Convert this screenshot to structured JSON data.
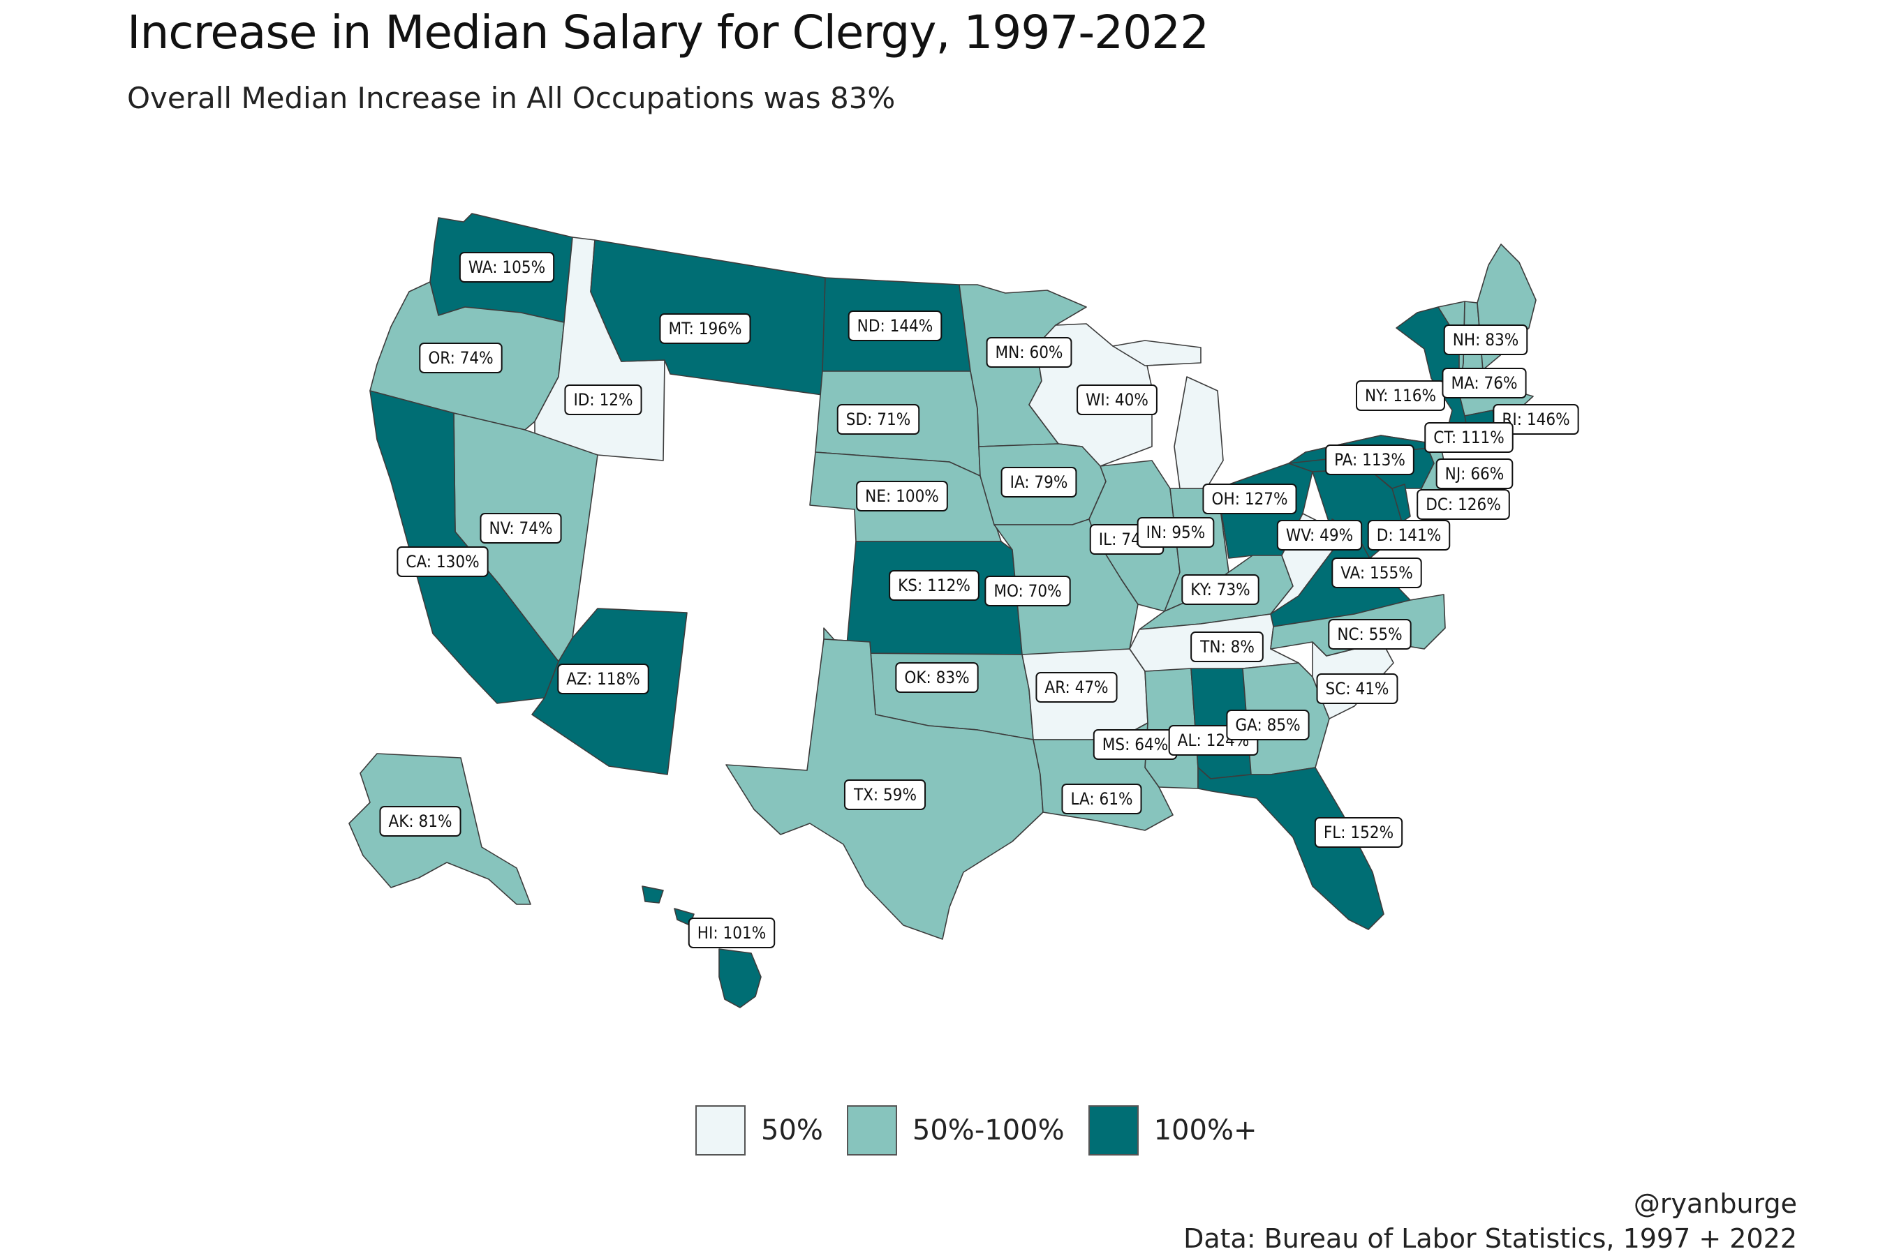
{
  "title": "Increase in Median Salary for Clergy, 1997-2022",
  "subtitle": "Overall Median Increase in All Occupations was 83%",
  "colors": {
    "low": "#eef6f8",
    "mid": "#87c4bd",
    "high": "#006e74",
    "border": "#3c3c3c"
  },
  "legend": [
    {
      "label": "50%",
      "bin": "low"
    },
    {
      "label": "50%-100%",
      "bin": "mid"
    },
    {
      "label": "100%+",
      "bin": "high"
    }
  ],
  "states": [
    {
      "abbr": "WA",
      "value": 105,
      "label": "WA: 105%",
      "bin": "high"
    },
    {
      "abbr": "OR",
      "value": 74,
      "label": "OR: 74%",
      "bin": "mid"
    },
    {
      "abbr": "ID",
      "value": 12,
      "label": "ID: 12%",
      "bin": "low"
    },
    {
      "abbr": "MT",
      "value": 196,
      "label": "MT: 196%",
      "bin": "high"
    },
    {
      "abbr": "ND",
      "value": 144,
      "label": "ND: 144%",
      "bin": "high"
    },
    {
      "abbr": "MN",
      "value": 60,
      "label": "MN: 60%",
      "bin": "mid"
    },
    {
      "abbr": "WI",
      "value": 40,
      "label": "WI: 40%",
      "bin": "low"
    },
    {
      "abbr": "SD",
      "value": 71,
      "label": "SD: 71%",
      "bin": "mid"
    },
    {
      "abbr": "NE",
      "value": 100,
      "label": "NE: 100%",
      "bin": "mid"
    },
    {
      "abbr": "IA",
      "value": 79,
      "label": "IA: 79%",
      "bin": "mid"
    },
    {
      "abbr": "NV",
      "value": 74,
      "label": "NV: 74%",
      "bin": "mid"
    },
    {
      "abbr": "CA",
      "value": 130,
      "label": "CA: 130%",
      "bin": "high"
    },
    {
      "abbr": "AZ",
      "value": 118,
      "label": "AZ: 118%",
      "bin": "high"
    },
    {
      "abbr": "KS",
      "value": 112,
      "label": "KS: 112%",
      "bin": "high"
    },
    {
      "abbr": "OK",
      "value": 83,
      "label": "OK: 83%",
      "bin": "mid"
    },
    {
      "abbr": "TX",
      "value": 59,
      "label": "TX: 59%",
      "bin": "mid"
    },
    {
      "abbr": "MO",
      "value": 70,
      "label": "MO: 70%",
      "bin": "mid"
    },
    {
      "abbr": "IL",
      "value": 74,
      "label": "IL: 74%",
      "bin": "mid"
    },
    {
      "abbr": "IN",
      "value": 95,
      "label": "IN: 95%",
      "bin": "mid"
    },
    {
      "abbr": "OH",
      "value": 127,
      "label": "OH: 127%",
      "bin": "high"
    },
    {
      "abbr": "KY",
      "value": 73,
      "label": "KY: 73%",
      "bin": "mid"
    },
    {
      "abbr": "WV",
      "value": 49,
      "label": "WV: 49%",
      "bin": "low"
    },
    {
      "abbr": "VA",
      "value": 155,
      "label": "VA: 155%",
      "bin": "high"
    },
    {
      "abbr": "TN",
      "value": 8,
      "label": "TN: 8%",
      "bin": "low"
    },
    {
      "abbr": "AR",
      "value": 47,
      "label": "AR: 47%",
      "bin": "low"
    },
    {
      "abbr": "MS",
      "value": 64,
      "label": "MS: 64%",
      "bin": "mid"
    },
    {
      "abbr": "AL",
      "value": 124,
      "label": "AL: 124%",
      "bin": "high"
    },
    {
      "abbr": "LA",
      "value": 61,
      "label": "LA: 61%",
      "bin": "mid"
    },
    {
      "abbr": "GA",
      "value": 85,
      "label": "GA: 85%",
      "bin": "mid"
    },
    {
      "abbr": "FL",
      "value": 152,
      "label": "FL: 152%",
      "bin": "high"
    },
    {
      "abbr": "SC",
      "value": 41,
      "label": "SC: 41%",
      "bin": "low"
    },
    {
      "abbr": "NC",
      "value": 55,
      "label": "NC: 55%",
      "bin": "mid"
    },
    {
      "abbr": "PA",
      "value": 113,
      "label": "PA: 113%",
      "bin": "high"
    },
    {
      "abbr": "NY",
      "value": 116,
      "label": "NY: 116%",
      "bin": "high"
    },
    {
      "abbr": "NH",
      "value": 83,
      "label": "NH: 83%",
      "bin": "mid"
    },
    {
      "abbr": "MA",
      "value": 76,
      "label": "MA: 76%",
      "bin": "mid"
    },
    {
      "abbr": "RI",
      "value": 146,
      "label": "RI: 146%",
      "bin": "high"
    },
    {
      "abbr": "CT",
      "value": 111,
      "label": "CT: 111%",
      "bin": "high"
    },
    {
      "abbr": "NJ",
      "value": 66,
      "label": "NJ: 66%",
      "bin": "mid"
    },
    {
      "abbr": "DC",
      "value": 126,
      "label": "DC: 126%",
      "bin": "high"
    },
    {
      "abbr": "MD",
      "value": 141,
      "label": "D: 141%",
      "bin": "high"
    },
    {
      "abbr": "AK",
      "value": 81,
      "label": "AK: 81%",
      "bin": "mid"
    },
    {
      "abbr": "HI",
      "value": 101,
      "label": "HI: 101%",
      "bin": "high"
    },
    {
      "abbr": "VT",
      "value": null,
      "label": "",
      "bin": "mid"
    },
    {
      "abbr": "ME",
      "value": null,
      "label": "",
      "bin": "mid"
    },
    {
      "abbr": "MI",
      "value": null,
      "label": "",
      "bin": "low"
    },
    {
      "abbr": "DE",
      "value": null,
      "label": "",
      "bin": "high"
    }
  ],
  "credit": {
    "handle": "@ryanburge",
    "source": "Data: Bureau of Labor Statistics, 1997 + 2022"
  }
}
